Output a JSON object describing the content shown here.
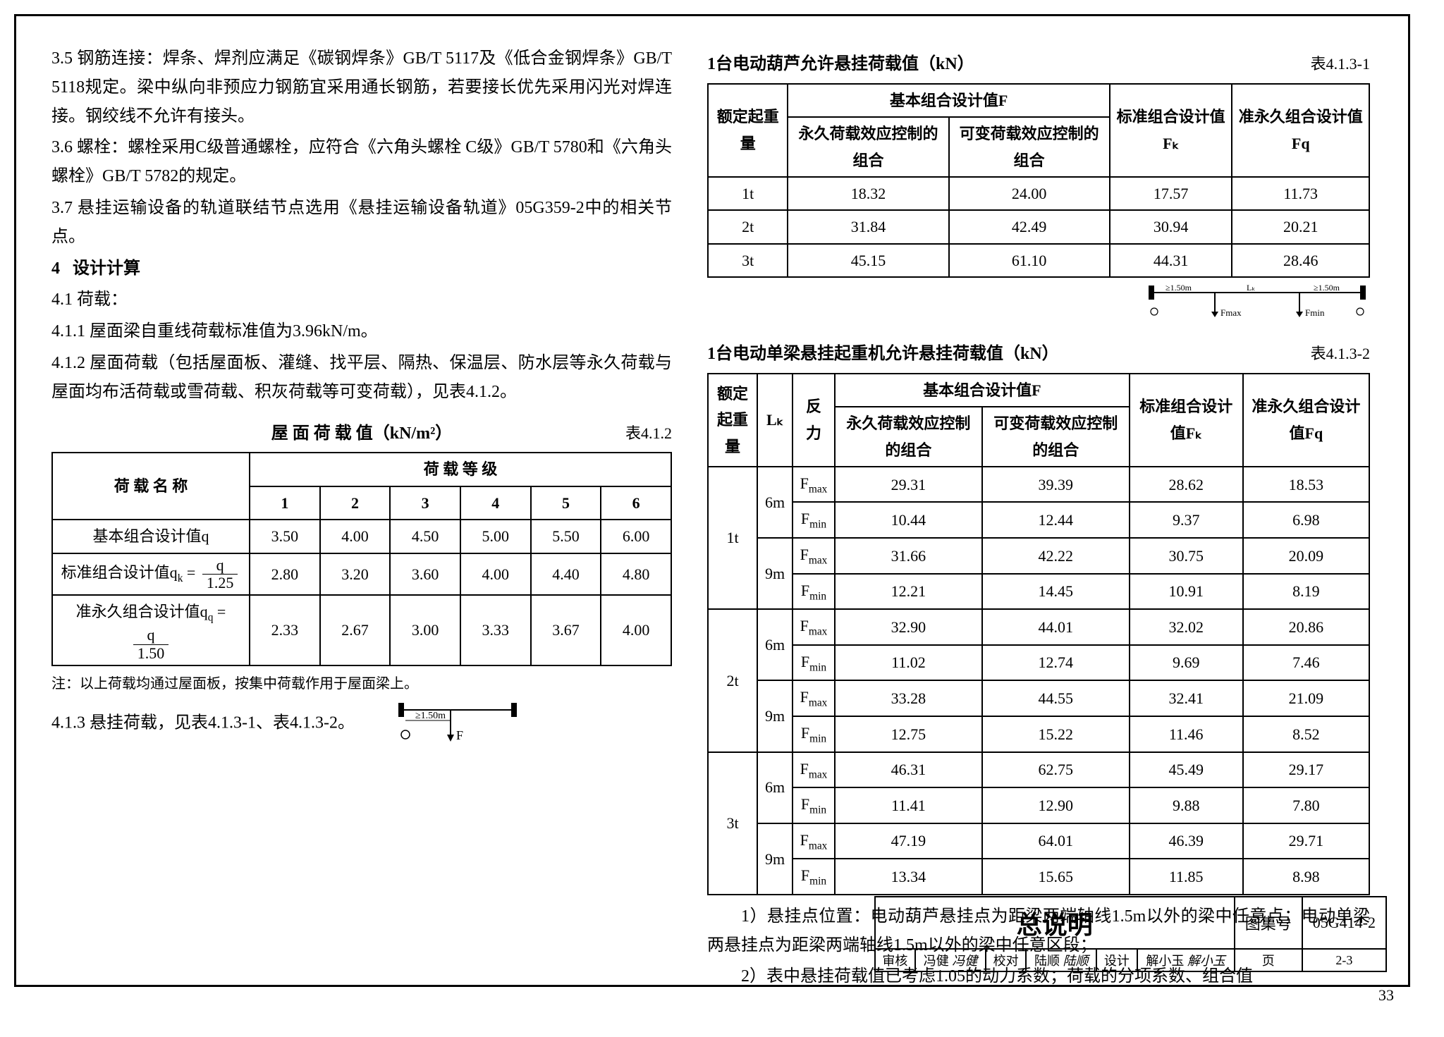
{
  "leftCol": {
    "p35": "3.5 钢筋连接：焊条、焊剂应满足《碳钢焊条》GB/T 5117及《低合金钢焊条》GB/T 5118规定。梁中纵向非预应力钢筋宜采用通长钢筋，若要接长优先采用闪光对焊连接。钢绞线不允许有接头。",
    "p36": "3.6 螺栓：螺栓采用C级普通螺栓，应符合《六角头螺栓 C级》GB/T 5780和《六角头螺栓》GB/T 5782的规定。",
    "p37": "3.7 悬挂运输设备的轨道联结节点选用《悬挂运输设备轨道》05G359-2中的相关节点。",
    "h4": "4",
    "h4_title": "设计计算",
    "p41": "4.1 荷载：",
    "p411": "4.1.1 屋面梁自重线荷载标准值为3.96kN/m。",
    "p412": "4.1.2 屋面荷载（包括屋面板、灌缝、找平层、隔热、保温层、防水层等永久荷载与屋面均布活荷载或雪荷载、积灰荷载等可变荷载），见表4.1.2。",
    "table412": {
      "title": "屋 面 荷 载 值（kN/m²）",
      "label": "表4.1.2",
      "col1": "荷 载 名 称",
      "col2": "荷 载 等 级",
      "levels": [
        "1",
        "2",
        "3",
        "4",
        "5",
        "6"
      ],
      "rows": [
        {
          "name": "基本组合设计值q",
          "formula": false,
          "vals": [
            "3.50",
            "4.00",
            "4.50",
            "5.00",
            "5.50",
            "6.00"
          ]
        },
        {
          "name": "标准组合设计值q",
          "sub": "k",
          "formula": true,
          "num": "q",
          "den": "1.25",
          "vals": [
            "2.80",
            "3.20",
            "3.60",
            "4.00",
            "4.40",
            "4.80"
          ]
        },
        {
          "name": "准永久组合设计值q",
          "sub": "q",
          "formula": true,
          "num": "q",
          "den": "1.50",
          "vals": [
            "2.33",
            "2.67",
            "3.00",
            "3.33",
            "3.67",
            "4.00"
          ]
        }
      ]
    },
    "note412": "注：以上荷载均通过屋面板，按集中荷载作用于屋面梁上。",
    "p413": "4.1.3 悬挂荷载，见表4.1.3-1、表4.1.3-2。",
    "diag1": {
      "dist": "≥1.50m",
      "F": "F"
    }
  },
  "rightCol": {
    "table4131": {
      "title": "1台电动葫芦允许悬挂荷载值（kN）",
      "label": "表4.1.3-1",
      "headers": {
        "c1": "额定起重量",
        "c2": "基本组合设计值F",
        "c2a": "永久荷载效应控制的组合",
        "c2b": "可变荷载效应控制的组合",
        "c3": "标准组合设计值Fₖ",
        "c4": "准永久组合设计值Fq"
      },
      "rows": [
        [
          "1t",
          "18.32",
          "24.00",
          "17.57",
          "11.73"
        ],
        [
          "2t",
          "31.84",
          "42.49",
          "30.94",
          "20.21"
        ],
        [
          "3t",
          "45.15",
          "61.10",
          "44.31",
          "28.46"
        ]
      ]
    },
    "diag2": {
      "d1": "≥1.50m",
      "lk": "Lₖ",
      "d2": "≥1.50m",
      "fmax": "Fmax",
      "fmin": "Fmin"
    },
    "table4132": {
      "title": "1台电动单梁悬挂起重机允许悬挂荷载值（kN）",
      "label": "表4.1.3-2",
      "headers": {
        "c1": "额定起重 量",
        "c2": "Lₖ",
        "c3": "反力",
        "c4": "基本组合设计值F",
        "c4a": "永久荷载效应控制的组合",
        "c4b": "可变荷载效应控制的组合",
        "c5": "标准组合设计值Fₖ",
        "c6": "准永久组合设计值Fq"
      },
      "groups": [
        {
          "load": "1t",
          "spans": [
            {
              "L": "6m",
              "rows": [
                [
                  "Fmax",
                  "29.31",
                  "39.39",
                  "28.62",
                  "18.53"
                ],
                [
                  "Fmin",
                  "10.44",
                  "12.44",
                  "9.37",
                  "6.98"
                ]
              ]
            },
            {
              "L": "9m",
              "rows": [
                [
                  "Fmax",
                  "31.66",
                  "42.22",
                  "30.75",
                  "20.09"
                ],
                [
                  "Fmin",
                  "12.21",
                  "14.45",
                  "10.91",
                  "8.19"
                ]
              ]
            }
          ]
        },
        {
          "load": "2t",
          "spans": [
            {
              "L": "6m",
              "rows": [
                [
                  "Fmax",
                  "32.90",
                  "44.01",
                  "32.02",
                  "20.86"
                ],
                [
                  "Fmin",
                  "11.02",
                  "12.74",
                  "9.69",
                  "7.46"
                ]
              ]
            },
            {
              "L": "9m",
              "rows": [
                [
                  "Fmax",
                  "33.28",
                  "44.55",
                  "32.41",
                  "21.09"
                ],
                [
                  "Fmin",
                  "12.75",
                  "15.22",
                  "11.46",
                  "8.52"
                ]
              ]
            }
          ]
        },
        {
          "load": "3t",
          "spans": [
            {
              "L": "6m",
              "rows": [
                [
                  "Fmax",
                  "46.31",
                  "62.75",
                  "45.49",
                  "29.17"
                ],
                [
                  "Fmin",
                  "11.41",
                  "12.90",
                  "9.88",
                  "7.80"
                ]
              ]
            },
            {
              "L": "9m",
              "rows": [
                [
                  "Fmax",
                  "47.19",
                  "64.01",
                  "46.39",
                  "29.71"
                ],
                [
                  "Fmin",
                  "13.34",
                  "15.65",
                  "11.85",
                  "8.98"
                ]
              ]
            }
          ]
        }
      ]
    },
    "note1": "1）悬挂点位置：电动葫芦悬挂点为距梁两端轴线1.5m以外的梁中任意点；电动单梁两悬挂点为距梁两端轴线1.5m以外的梁中任意区段；",
    "note2": "2）表中悬挂荷载值已考虑1.05的动力系数；荷载的分项系数、组合值"
  },
  "titleBlock": {
    "main": "总说明",
    "atlasLabel": "图集号",
    "atlasVal": "05G414-2",
    "reviewLabel": "审核",
    "reviewer": "冯健",
    "reviewerSig": "冯健",
    "checkLabel": "校对",
    "checker": "陆顺",
    "checkerSig": "陆顺",
    "designLabel": "设计",
    "designer": "解小玉",
    "designerSig": "解小玉",
    "pageLabel": "页",
    "pageVal": "2-3"
  },
  "pageNum": "33"
}
